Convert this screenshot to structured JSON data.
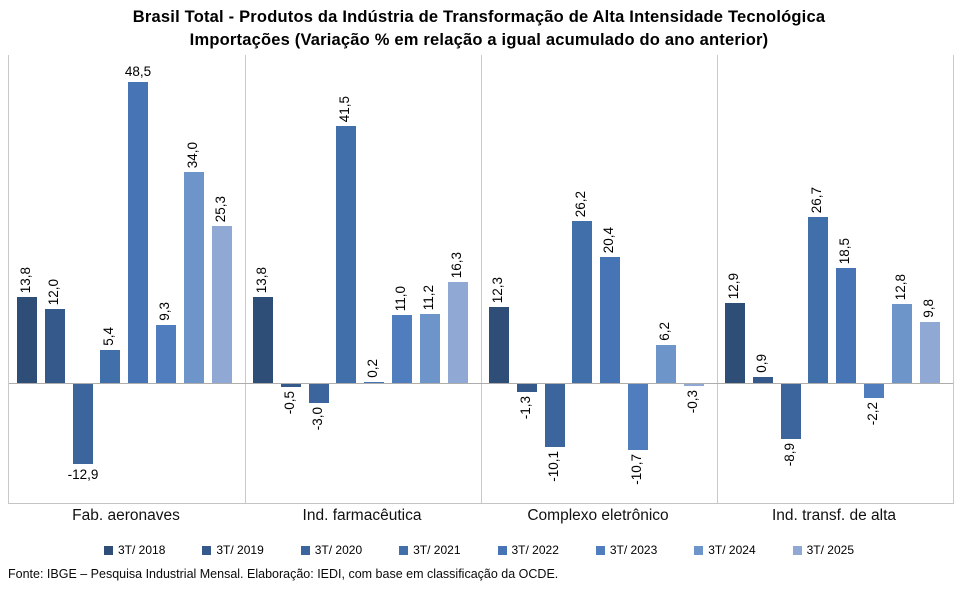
{
  "title": {
    "line1": "Brasil Total - Produtos da Indústria de Transformação de Alta Intensidade Tecnológica",
    "line2": "Importações (Variação % em relação a igual acumulado do ano anterior)"
  },
  "footer": "Fonte: IBGE – Pesquisa Industrial Mensal. Elaboração: IEDI, com base em classificação da OCDE.",
  "chart_data": {
    "type": "bar",
    "title": "Brasil Total - Produtos da Indústria de Transformação de Alta Intensidade Tecnológica — Importações (Variação % em relação a igual acumulado do ano anterior)",
    "categories": [
      "Fab. aeronaves",
      "Ind. farmacêutica",
      "Complexo eletrônico",
      "Ind. transf. de alta"
    ],
    "series": [
      {
        "name": "3T/ 2018",
        "color": "#2E4D77",
        "values": [
          13.8,
          13.8,
          12.3,
          12.9
        ]
      },
      {
        "name": "3T/ 2019",
        "color": "#36598B",
        "values": [
          12.0,
          -0.5,
          -1.3,
          0.9
        ]
      },
      {
        "name": "3T/ 2020",
        "color": "#3C659D",
        "values": [
          -12.9,
          -3.0,
          -10.1,
          -8.9
        ]
      },
      {
        "name": "3T/ 2021",
        "color": "#416FA9",
        "values": [
          5.4,
          41.5,
          26.2,
          26.7
        ]
      },
      {
        "name": "3T/ 2022",
        "color": "#4674B4",
        "values": [
          48.5,
          0.2,
          20.4,
          18.5
        ]
      },
      {
        "name": "3T/ 2023",
        "color": "#4F7DBD",
        "values": [
          9.3,
          11.0,
          -10.7,
          -2.2
        ]
      },
      {
        "name": "3T/ 2024",
        "color": "#6D95C9",
        "values": [
          34.0,
          11.2,
          6.2,
          12.8
        ]
      },
      {
        "name": "3T/ 2025",
        "color": "#8FA9D4",
        "values": [
          25.3,
          16.3,
          -0.3,
          9.8
        ]
      }
    ],
    "ylim": [
      -20,
      52
    ],
    "value_axis_visible": false,
    "gridlines": "vertical category dividers only",
    "legend_position": "bottom",
    "data_labels": "every point, one decimal, comma as decimal separator, rotated 90° except noted",
    "horizontal_labels": [
      {
        "category": 0,
        "series": 4
      },
      {
        "category": 0,
        "series": 2
      }
    ]
  }
}
